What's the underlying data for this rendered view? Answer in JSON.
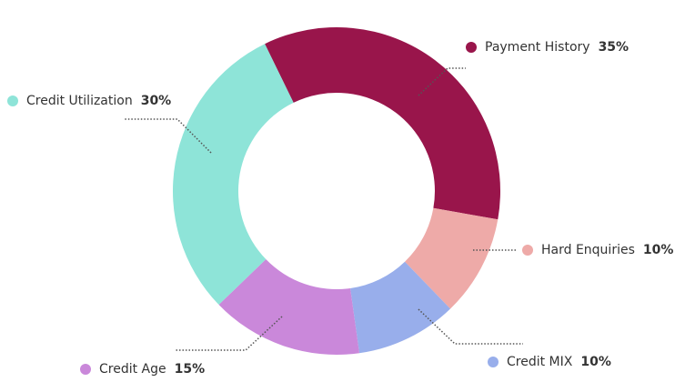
{
  "chart_data": {
    "type": "donut",
    "categories": [
      "Payment History",
      "Hard Enquiries",
      "Credit MIX",
      "Credit Age",
      "Credit Utilization"
    ],
    "values": [
      35,
      10,
      10,
      15,
      30
    ],
    "value_labels": [
      "35%",
      "10%",
      "10%",
      "15%",
      "30%"
    ],
    "colors": [
      "#99154b",
      "#eeaaa8",
      "#98aeeb",
      "#ca88da",
      "#8ee4d8"
    ]
  }
}
